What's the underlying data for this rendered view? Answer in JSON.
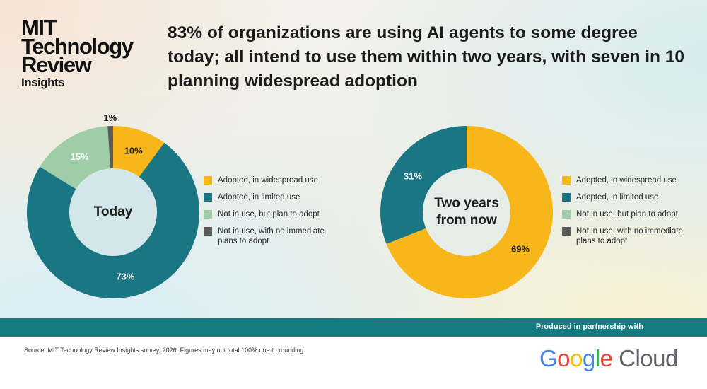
{
  "brand": {
    "line1": "MIT",
    "line2": "Technology",
    "line3": "Review",
    "line4": "Insights"
  },
  "headline": "83% of organizations are using AI agents to some degree today; all intend to use them within two years, with seven in 10 planning widespread adoption",
  "legend_labels": [
    "Adopted, in widespread use",
    "Adopted, in limited use",
    "Not in use, but plan to adopt",
    "Not in use, with no immediate plans to adopt"
  ],
  "colors": {
    "widespread": "#f7b619",
    "limited": "#1a7682",
    "plan": "#9ecda8",
    "none": "#5b5b5b",
    "banner": "#147b80"
  },
  "chart_data": [
    {
      "type": "pie",
      "center_label": "Today",
      "slices": [
        {
          "label": "Adopted, in widespread use",
          "value": 10,
          "value_label": "10%"
        },
        {
          "label": "Adopted, in limited use",
          "value": 73,
          "value_label": "73%"
        },
        {
          "label": "Not in use, but plan to adopt",
          "value": 15,
          "value_label": "15%"
        },
        {
          "label": "Not in use, with no immediate plans to adopt",
          "value": 1,
          "value_label": "1%"
        }
      ]
    },
    {
      "type": "pie",
      "center_label": "Two years from now",
      "slices": [
        {
          "label": "Adopted, in widespread use",
          "value": 69,
          "value_label": "69%"
        },
        {
          "label": "Adopted, in limited use",
          "value": 31,
          "value_label": "31%"
        }
      ]
    }
  ],
  "footer": {
    "partner_text": "Produced in partnership with",
    "source": "Source: MIT Technology Review Insights survey, 2026. Figures may not total 100% due to rounding.",
    "partner_logo": {
      "g1": "G",
      "g2": "o",
      "g3": "o",
      "g4": "g",
      "g5": "l",
      "g6": "e",
      "cloud": " Cloud"
    }
  }
}
